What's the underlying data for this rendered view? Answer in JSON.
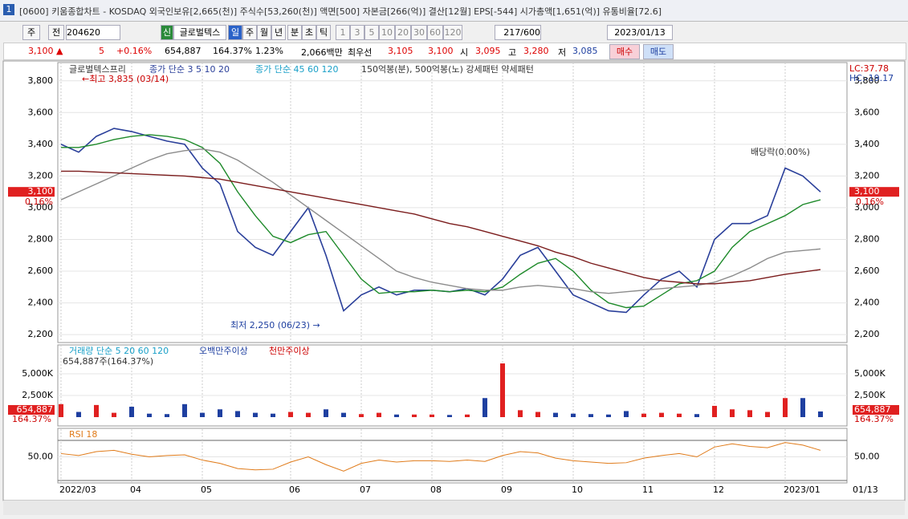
{
  "title_bar": {
    "icon": "1",
    "text": "[0600] 키움종합차트 - KOSDAQ 외국인보유[2,665(천)] 주식수[53,260(천)] 액면[500] 자본금[266(억)] 결산[12월] EPS[-544] 시가총액[1,651(억)] 유통비율[72.6]"
  },
  "toolbar": [
    "주",
    "전",
    "204620",
    "신",
    "글로벌텍스",
    "일",
    "주",
    "월",
    "년",
    "분",
    "초",
    "틱",
    "1",
    "3",
    "5",
    "10",
    "20",
    "30",
    "60",
    "120",
    "217/600",
    "2023/01/13"
  ],
  "quote": [
    "3,100 ▲",
    "5",
    "+0.16%",
    "654,887",
    "164.37%",
    "1.23%",
    "2,066백만",
    "최우선",
    "3,105",
    "3,100",
    "시",
    "3,095",
    "고",
    "3,280",
    "저",
    "3,085",
    "매수",
    "매도"
  ],
  "chart_data": [
    {
      "type": "line",
      "title": "글로벌텍스프리",
      "legend": [
        "종가 단순 3 5 10 20",
        "종가 단순 45 60 120",
        "150억봉(분), 500억봉(노) 강세패턴 약세패턴"
      ],
      "annotations": [
        "←최고 3,835 (03/14)",
        "최저 2,250 (06/23) →",
        "배당락(0.00%)",
        "LC:37.78",
        "HC:-19.17"
      ],
      "categories": [
        "2022/03",
        null,
        null,
        null,
        "04",
        null,
        null,
        null,
        "05",
        null,
        null,
        null,
        null,
        "06",
        null,
        null,
        null,
        "07",
        null,
        null,
        null,
        "08",
        null,
        null,
        null,
        "09",
        null,
        null,
        null,
        "10",
        null,
        null,
        null,
        "11",
        null,
        null,
        null,
        "12",
        null,
        null,
        null,
        "2023/01",
        null,
        null
      ],
      "x_end_label": "01/13",
      "series": [
        {
          "color": "#2a3f9a",
          "values": [
            3400,
            3350,
            3450,
            3500,
            3480,
            3450,
            3420,
            3400,
            3250,
            3150,
            2850,
            2750,
            2700,
            2850,
            3000,
            2700,
            2350,
            2450,
            2500,
            2450,
            2480,
            2480,
            2470,
            2490,
            2450,
            2550,
            2700,
            2750,
            2600,
            2450,
            2400,
            2350,
            2340,
            2450,
            2550,
            2600,
            2500,
            2800,
            2900,
            2900,
            2950,
            3250,
            3200,
            3100
          ]
        },
        {
          "color": "#1e8a2a",
          "values": [
            3380,
            3380,
            3400,
            3430,
            3450,
            3460,
            3450,
            3430,
            3380,
            3280,
            3100,
            2950,
            2820,
            2780,
            2830,
            2850,
            2700,
            2550,
            2460,
            2470,
            2470,
            2480,
            2470,
            2480,
            2470,
            2500,
            2580,
            2650,
            2680,
            2600,
            2480,
            2400,
            2370,
            2380,
            2450,
            2520,
            2540,
            2600,
            2750,
            2850,
            2900,
            2950,
            3020,
            3050
          ]
        },
        {
          "color": "#8c8c8c",
          "values": [
            3050,
            3100,
            3150,
            3200,
            3250,
            3300,
            3340,
            3360,
            3370,
            3350,
            3300,
            3230,
            3160,
            3080,
            3000,
            2920,
            2840,
            2760,
            2680,
            2600,
            2560,
            2530,
            2510,
            2490,
            2480,
            2480,
            2500,
            2510,
            2500,
            2490,
            2470,
            2460,
            2470,
            2480,
            2490,
            2500,
            2510,
            2530,
            2570,
            2620,
            2680,
            2720,
            2730,
            2740
          ]
        },
        {
          "color": "#7b1c1c",
          "values": [
            3230,
            3230,
            3225,
            3220,
            3215,
            3210,
            3205,
            3200,
            3190,
            3180,
            3160,
            3140,
            3120,
            3100,
            3080,
            3060,
            3040,
            3020,
            3000,
            2980,
            2960,
            2930,
            2900,
            2880,
            2850,
            2820,
            2790,
            2760,
            2720,
            2690,
            2650,
            2620,
            2590,
            2560,
            2540,
            2530,
            2520,
            2520,
            2530,
            2540,
            2560,
            2580,
            2595,
            2610
          ]
        }
      ],
      "ylim": [
        2150,
        3905
      ],
      "yticks": [
        {
          "value": 2200,
          "label": "2,200"
        },
        {
          "value": 2400,
          "label": "2,400"
        },
        {
          "value": 2600,
          "label": "2,600"
        },
        {
          "value": 2800,
          "label": "2,800"
        },
        {
          "value": 3000,
          "label": "3,000"
        },
        {
          "value": 3200,
          "label": "3,200"
        },
        {
          "value": 3400,
          "label": "3,400"
        },
        {
          "value": 3600,
          "label": "3,600"
        },
        {
          "value": 3800,
          "label": "3,800"
        }
      ],
      "current": {
        "value": 3100,
        "label": "3,100"
      },
      "change_label": "0.16%"
    },
    {
      "type": "bar",
      "title": "거래량 단순 5 20 60 120",
      "legend": [
        "오백만주이상",
        "천만주이상"
      ],
      "subtitle": "654,887주(164.37%)",
      "up_color": "#e02020",
      "down_color": "#1e3fa0",
      "values": [
        1500000,
        600000,
        1400000,
        500000,
        1200000,
        400000,
        350000,
        1500000,
        500000,
        900000,
        700000,
        500000,
        400000,
        600000,
        500000,
        900000,
        500000,
        350000,
        500000,
        300000,
        300000,
        300000,
        250000,
        300000,
        2200000,
        6200000,
        800000,
        600000,
        500000,
        400000,
        350000,
        300000,
        700000,
        400000,
        500000,
        400000,
        350000,
        1300000,
        900000,
        800000,
        600000,
        2200000,
        2200000,
        654887
      ],
      "ylim": [
        0,
        8150000
      ],
      "yticks": [
        {
          "value": 2500000,
          "label": "2,500K"
        },
        {
          "value": 5000000,
          "label": "5,000K"
        }
      ],
      "current_label": "654,887",
      "ratio_label": "164.37%"
    },
    {
      "type": "line",
      "title": "RSI 18",
      "color": "#e07b1a",
      "values": [
        55,
        52,
        58,
        60,
        54,
        50,
        52,
        53,
        45,
        40,
        32,
        30,
        31,
        42,
        50,
        38,
        28,
        40,
        45,
        42,
        44,
        44,
        43,
        45,
        43,
        52,
        58,
        56,
        48,
        44,
        42,
        40,
        41,
        48,
        52,
        55,
        50,
        65,
        70,
        66,
        64,
        72,
        68,
        60
      ],
      "ylim": [
        10,
        90
      ],
      "yticks": [
        {
          "value": 50,
          "label": "50.00"
        }
      ]
    }
  ]
}
